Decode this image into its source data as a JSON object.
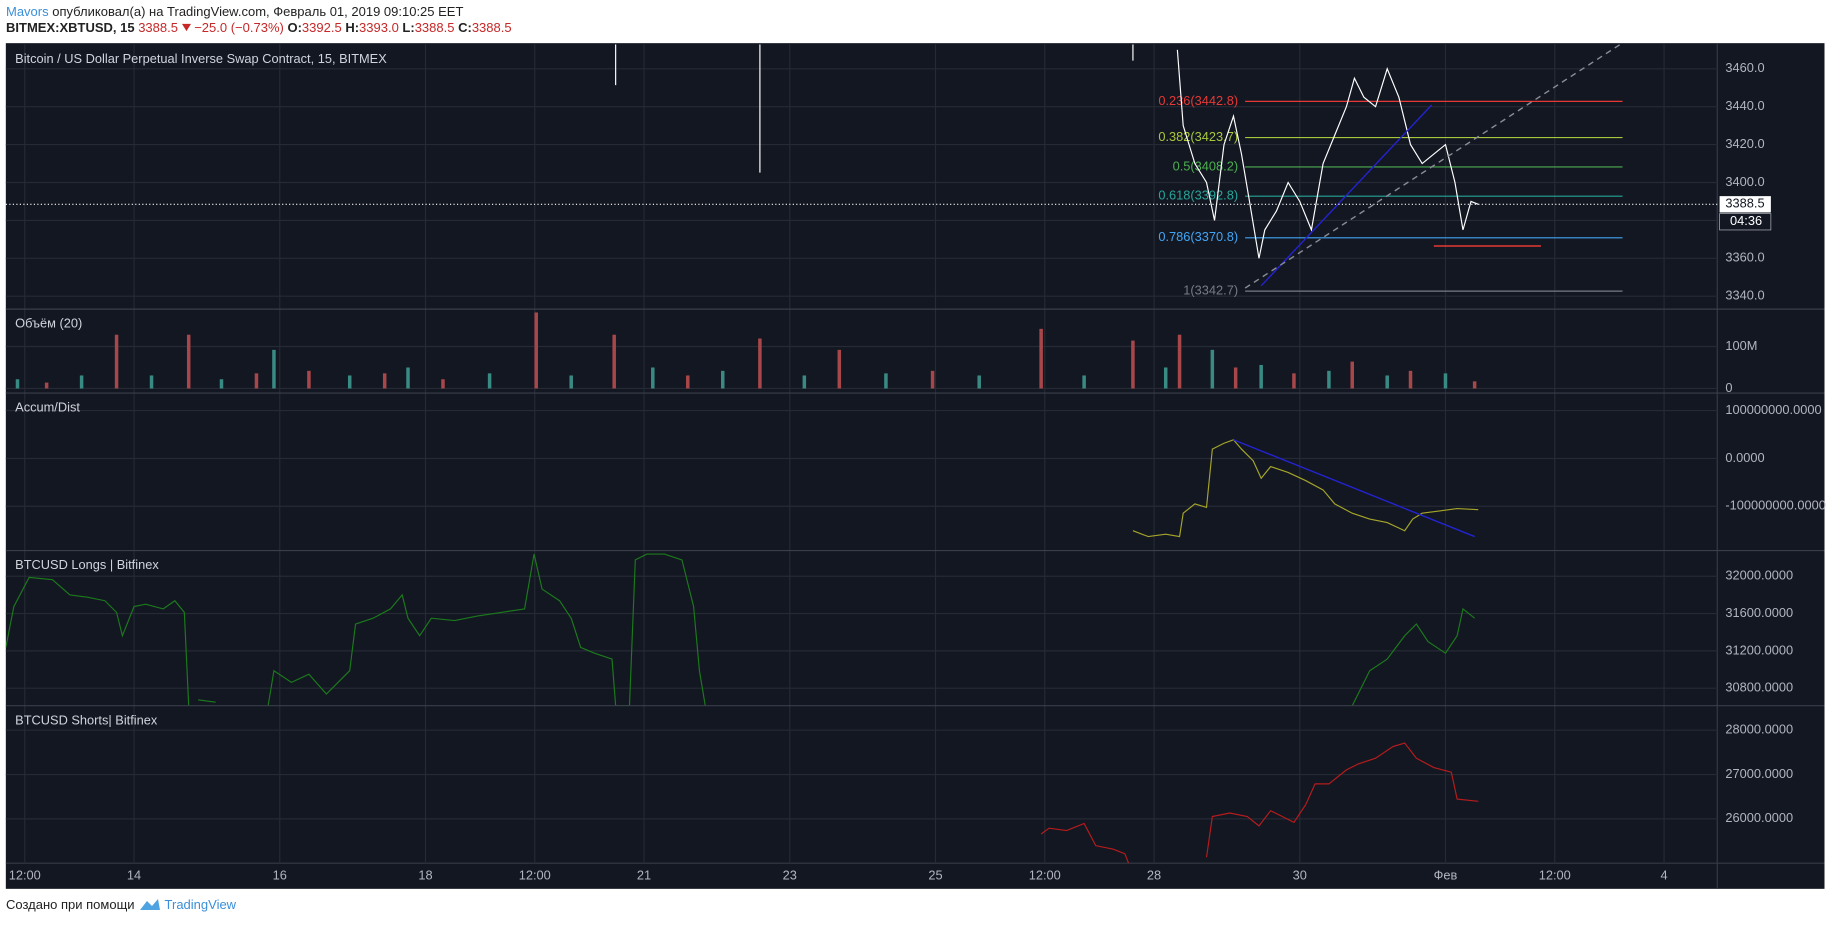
{
  "header": {
    "author": "Mavors",
    "published": "опубликовал(а) на TradingView.com, Февраль 01, 2019 09:10:25 EET",
    "symbol": "BITMEX:XBTUSD, 15",
    "last": "3388.5",
    "change": "−25.0 (−0.73%)",
    "ohlc": [
      {
        "label": "O:",
        "value": "3392.5"
      },
      {
        "label": "H:",
        "value": "3393.0"
      },
      {
        "label": "L:",
        "value": "3388.5"
      },
      {
        "label": "C:",
        "value": "3388.5"
      }
    ]
  },
  "chart_data": [
    {
      "type": "line",
      "title": "Bitcoin / US Dollar Perpetual Inverse Swap Contract, 15, BITMEX",
      "color": "#ffffff",
      "x": [
        28.32,
        28.4,
        28.56,
        28.72,
        28.83,
        28.96,
        29.09,
        29.2,
        29.31,
        29.44,
        29.52,
        29.68,
        29.84,
        30,
        30.16,
        30.32,
        30.48,
        30.64,
        30.75,
        30.88,
        31.04,
        31.2,
        31.36,
        31.52,
        31.68,
        31.84,
        32,
        32.13,
        32.24,
        32.35,
        32.45
      ],
      "values": [
        3470,
        3430,
        3410,
        3400,
        3380,
        3420,
        3435,
        3415,
        3390,
        3360,
        3375,
        3385,
        3400,
        3390,
        3375,
        3410,
        3425,
        3440,
        3455,
        3445,
        3440,
        3460,
        3445,
        3420,
        3410,
        3415,
        3420,
        3400,
        3375,
        3390,
        3388.5
      ],
      "wicks": {
        "x": [
          20.61,
          22.59,
          27.71
        ],
        "low": [
          3451.4,
          3405.2,
          3464.3
        ]
      },
      "ylim": [
        3333.2,
        3472.9
      ],
      "yticks": [
        {
          "value": 3340,
          "label": "3340.0"
        },
        {
          "value": 3360,
          "label": "3360.0"
        },
        {
          "value": 3380,
          "label": "3380.0"
        },
        {
          "value": 3400,
          "label": "3400.0"
        },
        {
          "value": 3420,
          "label": "3420.0"
        },
        {
          "value": 3440,
          "label": "3440.0"
        },
        {
          "value": 3460,
          "label": "3460.0"
        }
      ],
      "grid": true,
      "last_price": {
        "value": 3388.5,
        "label": "3388.5"
      },
      "countdown": "04:36",
      "fib": {
        "x": [
          29.25,
          34.43
        ],
        "levels": [
          {
            "label": "0.236(3442.8)",
            "value": 3442.8,
            "color": "#e53935"
          },
          {
            "label": "0.382(3423.7)",
            "value": 3423.7,
            "color": "#a8c83c"
          },
          {
            "label": "0.5(3408.2)",
            "value": 3408.2,
            "color": "#4caf50"
          },
          {
            "label": "0.618(3392.8)",
            "value": 3392.8,
            "color": "#26a69a"
          },
          {
            "label": "0.786(3370.8)",
            "value": 3370.8,
            "color": "#42a5f5"
          },
          {
            "label": "1(3342.7)",
            "value": 3342.7,
            "color": "#787b86"
          }
        ]
      },
      "drawings": [
        {
          "x": [
            29.47,
            31.81
          ],
          "y": [
            3345.5,
            3440.9
          ],
          "color": "#2323d0"
        },
        {
          "x": [
            29.25,
            34.4
          ],
          "y": [
            3344.3,
            3472.9
          ],
          "color": "#8a8d96",
          "dashed": true
        },
        {
          "x": [
            31.84,
            33.31
          ],
          "y": [
            3366.5,
            3366.5
          ],
          "color": "#e53935"
        }
      ]
    },
    {
      "type": "bar",
      "title": "Объём (20)",
      "x": [
        12.4,
        12.8,
        13.28,
        13.76,
        14.24,
        14.75,
        15.2,
        15.68,
        15.92,
        16.4,
        16.96,
        17.44,
        17.76,
        18.24,
        18.88,
        19.52,
        20,
        20.59,
        21.12,
        21.6,
        22.08,
        22.59,
        23.2,
        23.68,
        24.32,
        24.96,
        25.6,
        26.45,
        27.04,
        27.71,
        28.16,
        28.35,
        28.8,
        29.12,
        29.47,
        29.92,
        30.4,
        30.72,
        31.2,
        31.52,
        32,
        32.4
      ],
      "values": [
        22000000,
        14000000,
        31000000,
        128000000,
        31000000,
        128000000,
        22000000,
        36000000,
        92000000,
        42000000,
        31000000,
        36000000,
        50000000,
        22000000,
        36000000,
        181000000,
        31000000,
        128000000,
        50000000,
        31000000,
        42000000,
        119000000,
        31000000,
        92000000,
        36000000,
        42000000,
        31000000,
        142000000,
        31000000,
        114000000,
        50000000,
        128000000,
        92000000,
        50000000,
        56000000,
        36000000,
        42000000,
        64000000,
        31000000,
        42000000,
        36000000,
        17000000
      ],
      "colors": [
        "#3a8a84",
        "#a8474a",
        "#3a8a84",
        "#a8474a",
        "#3a8a84",
        "#a8474a",
        "#3a8a84",
        "#a8474a",
        "#3a8a84",
        "#a8474a",
        "#3a8a84",
        "#a8474a",
        "#3a8a84",
        "#a8474a",
        "#3a8a84",
        "#a8474a",
        "#3a8a84",
        "#a8474a",
        "#3a8a84",
        "#a8474a",
        "#3a8a84",
        "#a8474a",
        "#3a8a84",
        "#a8474a",
        "#3a8a84",
        "#a8474a",
        "#3a8a84",
        "#a8474a",
        "#3a8a84",
        "#a8474a",
        "#3a8a84",
        "#a8474a",
        "#3a8a84",
        "#a8474a",
        "#3a8a84",
        "#a8474a",
        "#3a8a84",
        "#a8474a",
        "#3a8a84",
        "#a8474a",
        "#3a8a84",
        "#a8474a"
      ],
      "ylim": [
        -11000000,
        189000000
      ],
      "yticks": [
        0,
        {
          "value": 100000000,
          "label": "100M"
        }
      ],
      "grid": true
    },
    {
      "type": "line",
      "title": "Accum/Dist",
      "color": "#a5a52a",
      "x": [
        27.71,
        27.92,
        28.16,
        28.35,
        28.4,
        28.56,
        28.72,
        28.8,
        28.96,
        29.09,
        29.2,
        29.36,
        29.47,
        29.6,
        29.84,
        30.08,
        30.32,
        30.48,
        30.72,
        30.96,
        31.2,
        31.44,
        31.55,
        31.68,
        31.92,
        32.16,
        32.45
      ],
      "values": [
        -151200000,
        -163400000,
        -158500000,
        -163400000,
        -114600000,
        -95100000,
        -102400000,
        19500000,
        31700000,
        39000000,
        19500000,
        -4900000,
        -41500000,
        -17100000,
        -29300000,
        -46300000,
        -65900000,
        -95100000,
        -114600000,
        -126800000,
        -134100000,
        -151200000,
        -126800000,
        -114600000,
        -109800000,
        -104900000,
        -107300000
      ],
      "ylim": [
        -192700000,
        136600000
      ],
      "yticks": [
        {
          "value": -100000000,
          "label": "-100000000.0000"
        },
        {
          "value": 0,
          "label": "0.0000"
        },
        {
          "value": 100000000,
          "label": "100000000.0000"
        }
      ],
      "grid": true,
      "drawings": [
        {
          "x": [
            29.09,
            32.4
          ],
          "y": [
            39000000,
            -163400000
          ],
          "color": "#2323d0"
        }
      ]
    },
    {
      "type": "line",
      "title": "BTCUSD Longs | Bitfinex",
      "color": "#1b7a1b",
      "x": [
        12.24,
        12.35,
        12.56,
        12.88,
        13.12,
        13.36,
        13.6,
        13.76,
        13.84,
        14,
        14.16,
        14.4,
        14.56,
        14.69,
        14.75,
        null,
        14.88,
        15.12,
        null,
        15.84,
        15.92,
        16.16,
        16.4,
        16.64,
        16.96,
        17.04,
        17.28,
        17.52,
        17.68,
        17.76,
        17.92,
        18.08,
        18.4,
        18.72,
        19.04,
        19.36,
        19.49,
        19.6,
        19.84,
        20,
        20.13,
        20.32,
        20.56,
        20.61,
        20.8,
        20.88,
        21.04,
        21.28,
        21.52,
        21.68,
        21.76,
        21.84,
        null,
        30.72,
        30.96,
        31.2,
        31.44,
        31.6,
        31.76,
        32,
        32.16,
        32.24,
        32.4
      ],
      "values": [
        31237.5,
        31675,
        31987.5,
        31962.5,
        31800,
        31775,
        31737.5,
        31612.5,
        31362.5,
        31675,
        31700,
        31650,
        31737.5,
        31612.5,
        30612.5,
        null,
        30675,
        30650,
        null,
        30612.5,
        30987.5,
        30862.5,
        30950,
        30737.5,
        30987.5,
        31487.5,
        31550,
        31650,
        31800,
        31550,
        31362.5,
        31550,
        31525,
        31575,
        31612.5,
        31650,
        32237.5,
        31862.5,
        31737.5,
        31550,
        31237.5,
        31175,
        31112.5,
        30612.5,
        30612.5,
        32175,
        32237.5,
        32237.5,
        32175,
        31675,
        30987.5,
        30612.5,
        null,
        30612.5,
        30987.5,
        31112.5,
        31362.5,
        31487.5,
        31300,
        31175,
        31362.5,
        31650,
        31550
      ],
      "ylim": [
        30612.5,
        32275
      ],
      "yticks": [
        {
          "value": 30800,
          "label": "30800.0000"
        },
        {
          "value": 31200,
          "label": "31200.0000"
        },
        {
          "value": 31600,
          "label": "31600.0000"
        },
        {
          "value": 32000,
          "label": "32000.0000"
        }
      ],
      "grid": true
    },
    {
      "type": "line",
      "title": "BTCUSD Shorts| Bitfinex",
      "color": "#b71c1c",
      "x": [
        26.45,
        26.56,
        26.8,
        27.04,
        27.2,
        27.44,
        27.6,
        27.65,
        null,
        28.72,
        28.8,
        29.04,
        29.28,
        29.44,
        29.6,
        29.76,
        29.92,
        30.08,
        30.21,
        30.4,
        30.64,
        30.8,
        31.04,
        31.28,
        31.44,
        31.6,
        31.84,
        32.08,
        32.16,
        32.45
      ],
      "values": [
        25658,
        25789,
        25737,
        25895,
        25395,
        25316,
        25211,
        25000,
        null,
        25132,
        26053,
        26132,
        26053,
        25842,
        26184,
        26053,
        25921,
        26316,
        26789,
        26789,
        27105,
        27237,
        27368,
        27632,
        27711,
        27368,
        27158,
        27053,
        26447,
        26395
      ],
      "ylim": [
        25000,
        28553
      ],
      "yticks": [
        {
          "value": 26000,
          "label": "26000.0000"
        },
        {
          "value": 27000,
          "label": "27000.0000"
        },
        {
          "value": 28000,
          "label": "28000.0000"
        }
      ],
      "grid": true,
      "xlim": [
        12.24,
        35.73
      ],
      "xticks": [
        {
          "value": 12.5,
          "label": "12:00"
        },
        14,
        16,
        18,
        {
          "value": 19.5,
          "label": "12:00"
        },
        21,
        23,
        25,
        {
          "value": 26.5,
          "label": "12:00"
        },
        28,
        30,
        {
          "value": 32,
          "label": "Фев"
        },
        {
          "value": 33.5,
          "label": "12:00"
        },
        {
          "value": 35,
          "label": "4"
        }
      ]
    }
  ],
  "footer": {
    "text": "Создано при помощи",
    "brand": "TradingView"
  }
}
